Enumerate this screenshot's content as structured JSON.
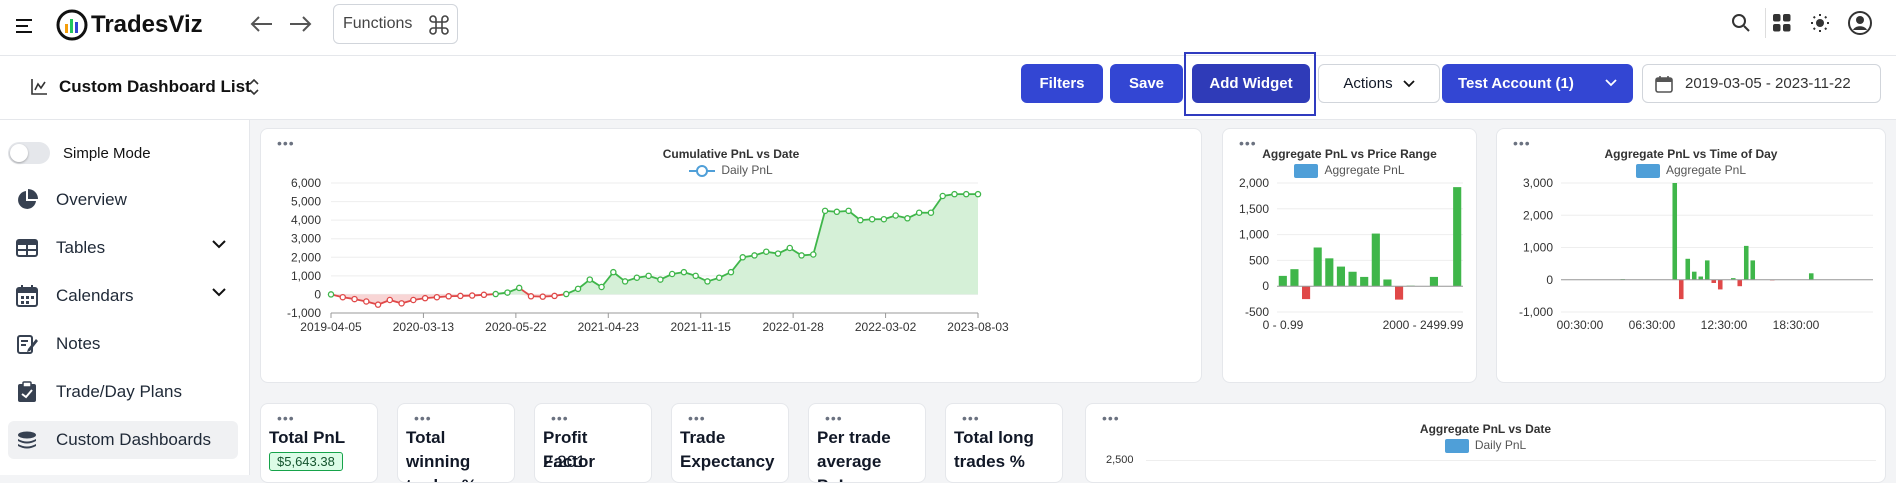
{
  "app": {
    "name": "TradesViz",
    "functions_label": "Functions"
  },
  "subbar": {
    "dashboard_list_label": "Custom Dashboard List",
    "filters_label": "Filters",
    "save_label": "Save",
    "add_widget_label": "Add Widget",
    "actions_label": "Actions",
    "account_label": "Test Account (1)",
    "date_range": "2019-03-05 - 2023-11-22"
  },
  "sidebar": {
    "simple_mode_label": "Simple Mode",
    "items": [
      {
        "label": "Overview",
        "icon": "pie-chart-icon"
      },
      {
        "label": "Tables",
        "icon": "table-icon"
      },
      {
        "label": "Calendars",
        "icon": "calendar-icon"
      },
      {
        "label": "Notes",
        "icon": "notes-icon"
      },
      {
        "label": "Trade/Day Plans",
        "icon": "clipboard-icon"
      },
      {
        "label": "Custom Dashboards",
        "icon": "stack-icon"
      }
    ]
  },
  "colors": {
    "primary": "#3346d3",
    "positive": "#3fb64a",
    "negative": "#e04848",
    "fill_positive": "#d5f0d7",
    "fill_negative": "#f8d5d5",
    "bar_legend": "#4f9fd8"
  },
  "stats": [
    {
      "title": "Total PnL",
      "badge": "$5,643.38"
    },
    {
      "title": "Total winning trades %"
    },
    {
      "title": "Profit Factor",
      "value": "2.201"
    },
    {
      "title": "Trade Expectancy"
    },
    {
      "title": "Per trade average PnL"
    },
    {
      "title": "Total long trades %"
    }
  ],
  "chart_data": [
    {
      "type": "line",
      "title": "Cumulative PnL vs Date",
      "legend": [
        "Daily PnL"
      ],
      "x_ticks": [
        "2019-04-05",
        "2020-03-13",
        "2020-05-22",
        "2021-04-23",
        "2021-11-15",
        "2022-01-28",
        "2022-03-02",
        "2023-08-03"
      ],
      "y_ticks": [
        "6,000",
        "5,000",
        "4,000",
        "3,000",
        "2,000",
        "1,000",
        "0",
        "-1,000"
      ],
      "ylim": [
        -1000,
        6000
      ],
      "values": [
        0,
        -150,
        -250,
        -380,
        -550,
        -300,
        -480,
        -300,
        -200,
        -150,
        -100,
        -80,
        -60,
        -20,
        20,
        100,
        350,
        -100,
        -120,
        -80,
        20,
        300,
        800,
        400,
        1200,
        700,
        900,
        1000,
        800,
        1100,
        1200,
        1000,
        700,
        900,
        1200,
        2000,
        2100,
        2300,
        2200,
        2500,
        2100,
        2150,
        4500,
        4450,
        4500,
        4000,
        4050,
        4050,
        4250,
        4100,
        4400,
        4400,
        5300,
        5400,
        5400,
        5400
      ]
    },
    {
      "type": "bar",
      "title": "Aggregate PnL vs Price Range",
      "legend": [
        "Aggregate PnL"
      ],
      "x_ticks": [
        "0 - 0.99",
        "2000 - 2499.99"
      ],
      "y_ticks": [
        "2,000",
        "1,500",
        "1,000",
        "500",
        "0",
        "-500"
      ],
      "ylim": [
        -500,
        2000
      ],
      "values": [
        200,
        330,
        -250,
        750,
        540,
        380,
        280,
        180,
        1020,
        130,
        -260,
        10,
        0,
        180,
        0,
        1920
      ]
    },
    {
      "type": "bar",
      "title": "Aggregate PnL vs Time of Day",
      "legend": [
        "Aggregate PnL"
      ],
      "x_ticks": [
        "00:30:00",
        "06:30:00",
        "12:30:00",
        "18:30:00"
      ],
      "y_ticks": [
        "3,000",
        "2,000",
        "1,000",
        "0",
        "-1,000"
      ],
      "ylim": [
        -1000,
        3000
      ],
      "values": [
        0,
        0,
        0,
        0,
        0,
        0,
        0,
        0,
        0,
        20,
        0,
        0,
        0,
        0,
        0,
        0,
        0,
        3000,
        -600,
        650,
        250,
        100,
        600,
        -100,
        -300,
        0,
        50,
        -200,
        1050,
        600,
        0,
        0,
        -20,
        0,
        0,
        0,
        0,
        0,
        200,
        0,
        0,
        0,
        0,
        0,
        0,
        0,
        0,
        0
      ]
    },
    {
      "type": "bar",
      "title": "Aggregate PnL vs Date",
      "legend": [
        "Daily PnL"
      ],
      "y_ticks": [
        "2,500"
      ],
      "values": []
    }
  ]
}
